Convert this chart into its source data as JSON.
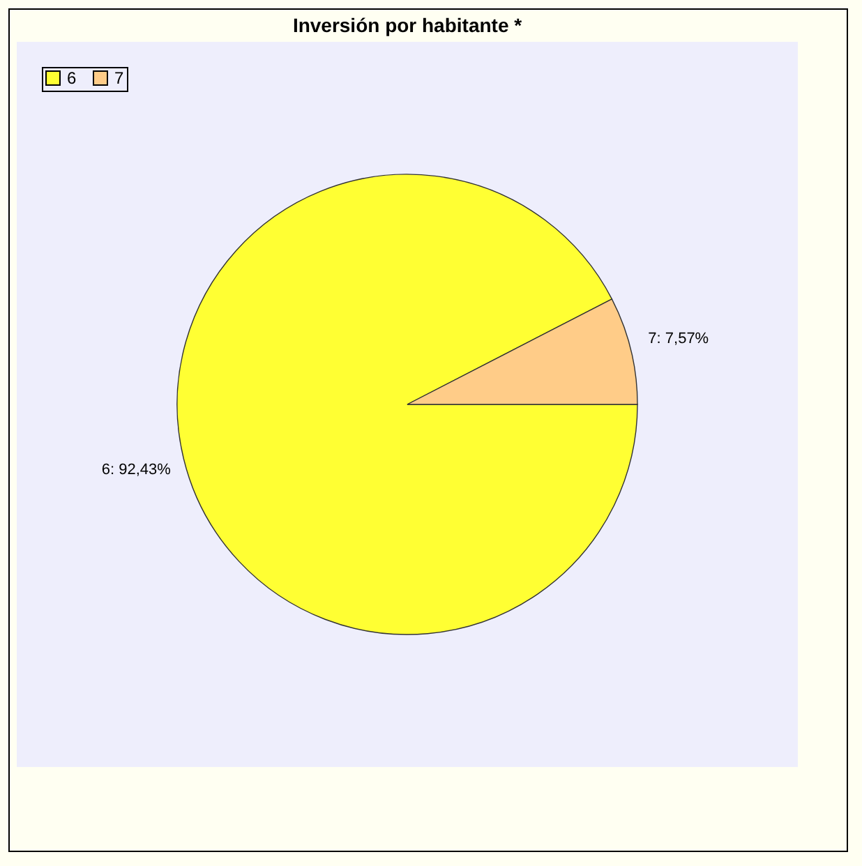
{
  "chart_data": {
    "type": "pie",
    "title": "Inversión por habitante *",
    "categories": [
      "6",
      "7"
    ],
    "values": [
      92.43,
      7.57
    ],
    "colors": [
      "#ffff33",
      "#ffcc88"
    ],
    "value_labels": [
      "6: 92,43%",
      "7: 7,57%"
    ],
    "legend": "top left"
  }
}
